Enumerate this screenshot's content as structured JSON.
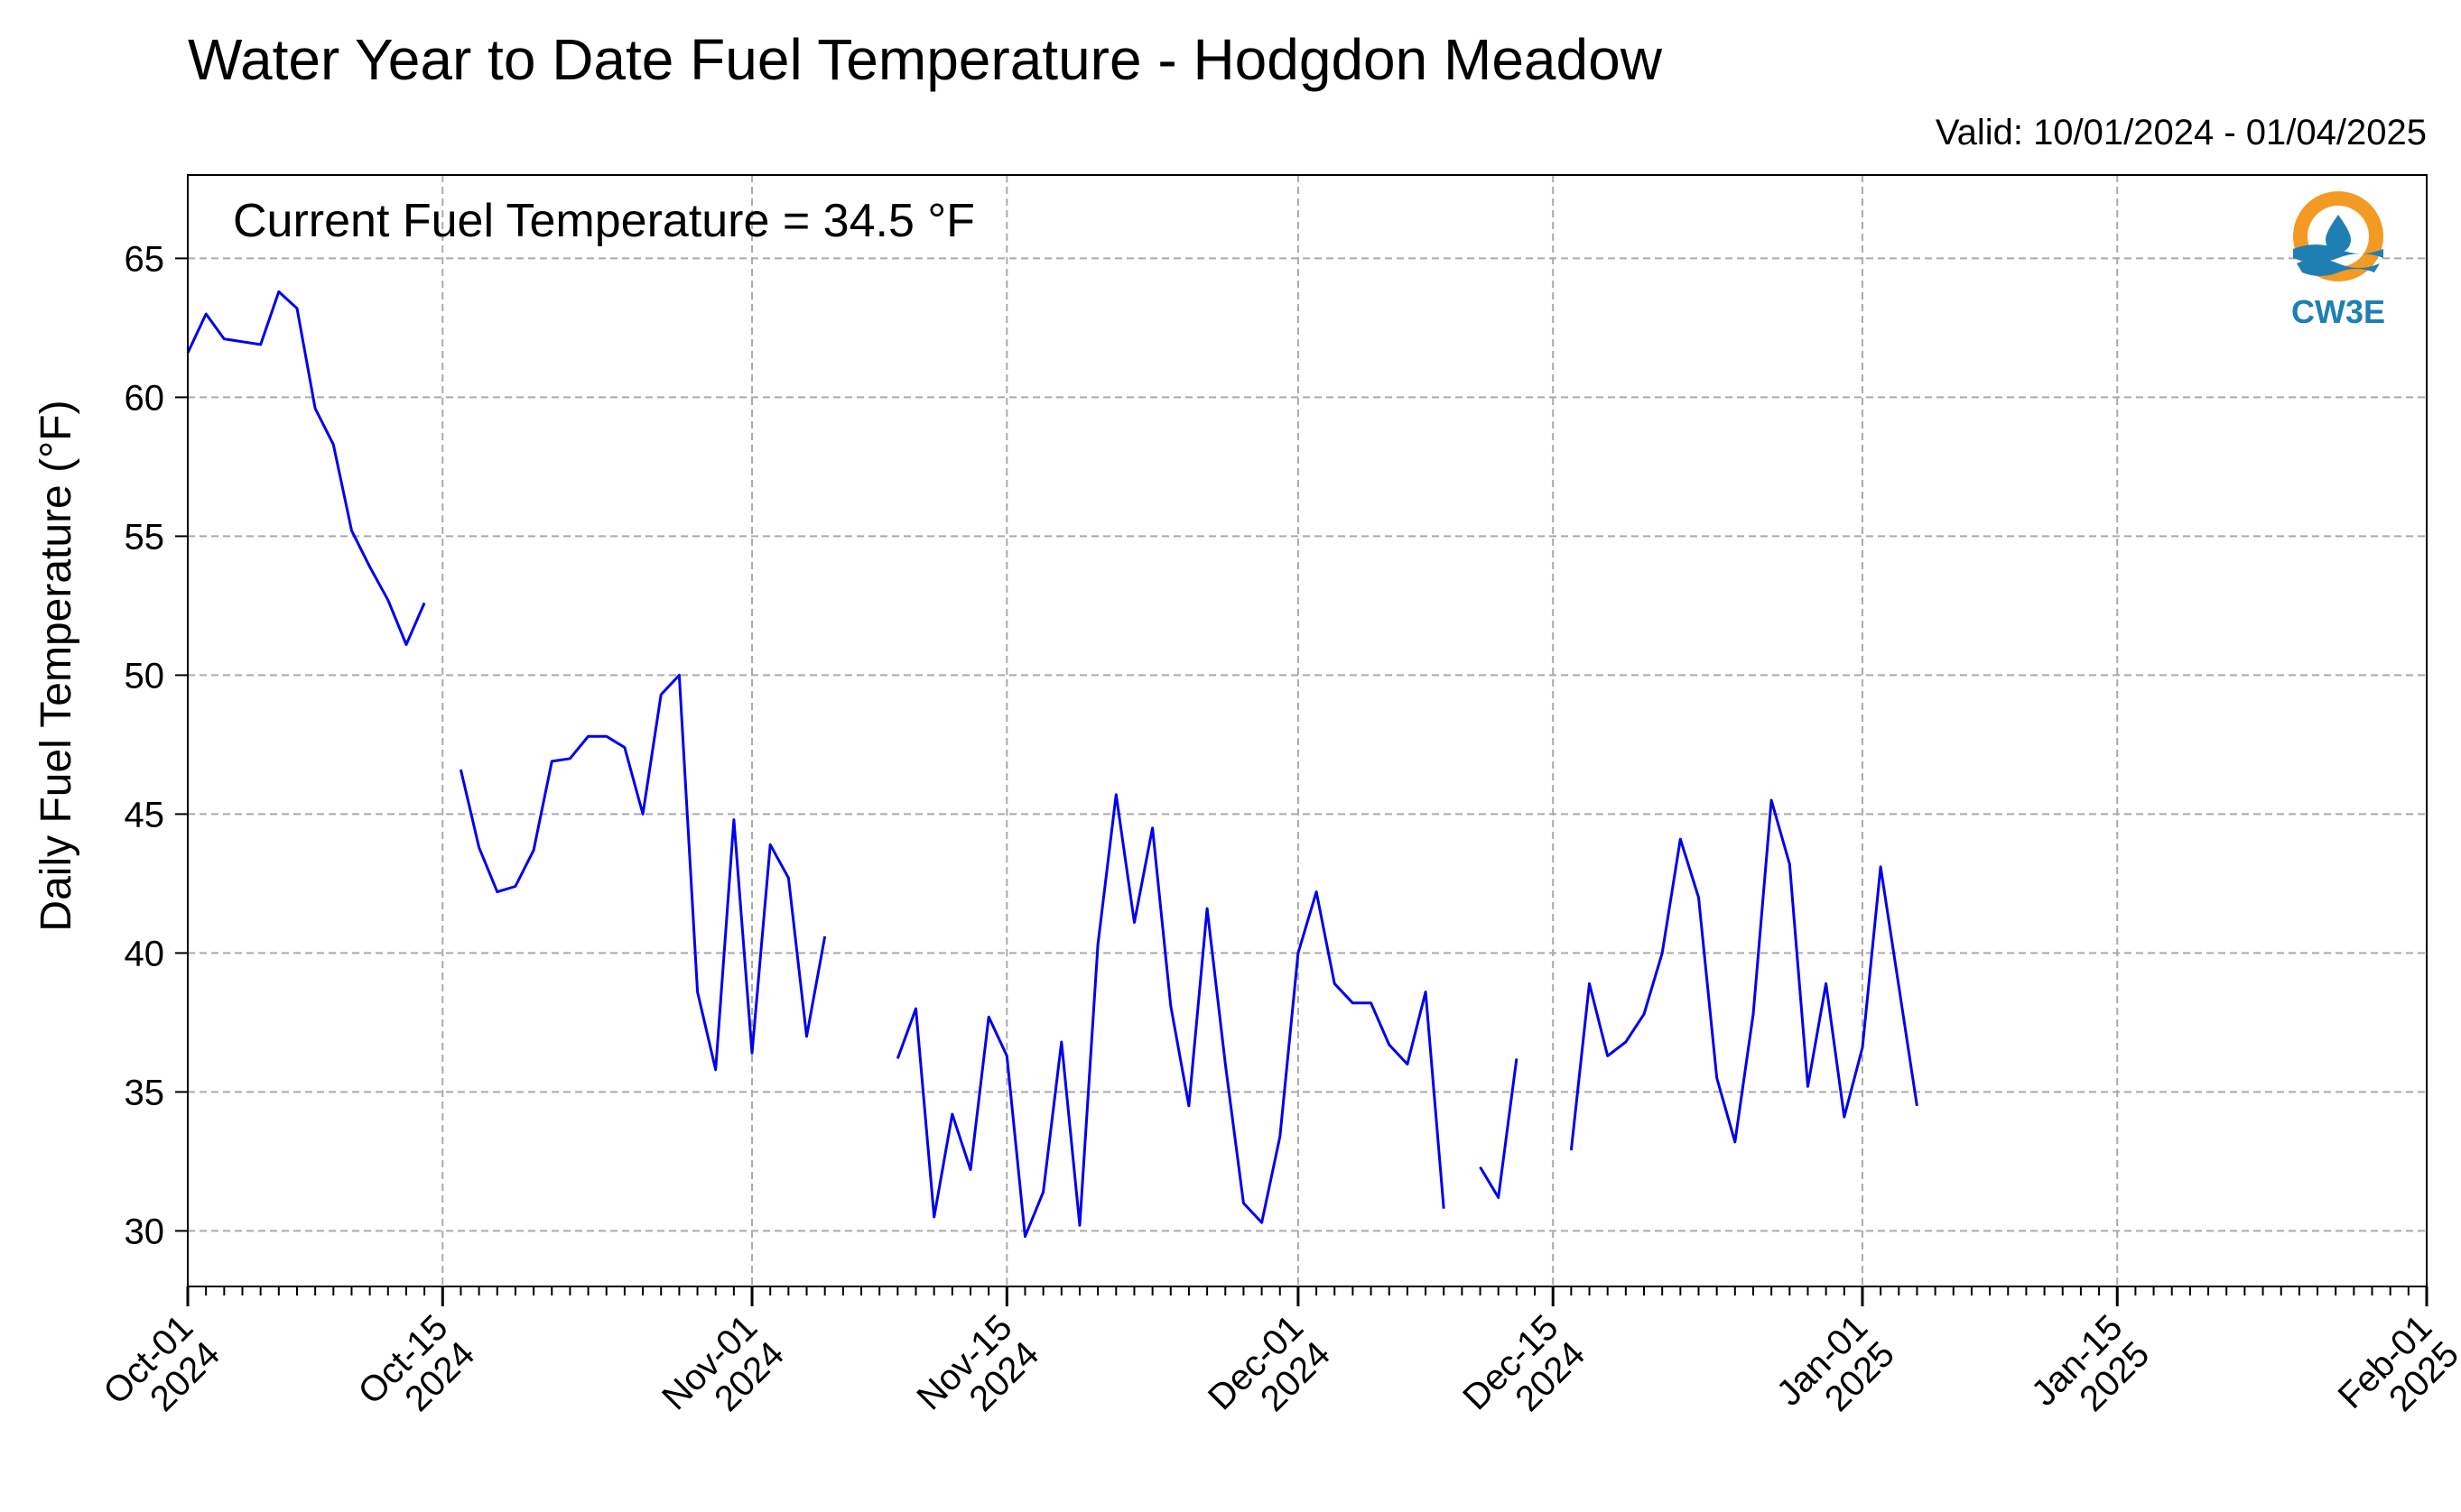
{
  "chart_data": {
    "type": "line",
    "title": "Water Year to Date Fuel Temperature - Hodgdon Meadow",
    "subtitle": "Valid: 10/01/2024 - 01/04/2025",
    "annotation": "Current Fuel Temperature = 34.5  °F",
    "ylabel": "Daily Fuel Temperature (°F)",
    "xlabel": "",
    "ylim": [
      28,
      68
    ],
    "xlim": [
      "2024-10-01",
      "2025-02-01"
    ],
    "grid": true,
    "yticks": [
      30,
      35,
      40,
      45,
      50,
      55,
      60,
      65
    ],
    "xticks": [
      {
        "date": "2024-10-01",
        "line1": "Oct-01",
        "line2": "2024"
      },
      {
        "date": "2024-10-15",
        "line1": "Oct-15",
        "line2": "2024"
      },
      {
        "date": "2024-11-01",
        "line1": "Nov-01",
        "line2": "2024"
      },
      {
        "date": "2024-11-15",
        "line1": "Nov-15",
        "line2": "2024"
      },
      {
        "date": "2024-12-01",
        "line1": "Dec-01",
        "line2": "2024"
      },
      {
        "date": "2024-12-15",
        "line1": "Dec-15",
        "line2": "2024"
      },
      {
        "date": "2025-01-01",
        "line1": "Jan-01",
        "line2": "2025"
      },
      {
        "date": "2025-01-15",
        "line1": "Jan-15",
        "line2": "2025"
      },
      {
        "date": "2025-02-01",
        "line1": "Feb-01",
        "line2": "2025"
      }
    ],
    "series": [
      {
        "color": "#0000ee",
        "x": [
          "2024-10-01",
          "2024-10-02",
          "2024-10-03",
          "2024-10-04",
          "2024-10-05",
          "2024-10-06",
          "2024-10-07",
          "2024-10-08",
          "2024-10-09",
          "2024-10-10",
          "2024-10-11",
          "2024-10-12",
          "2024-10-13",
          "2024-10-14",
          "2024-10-16",
          "2024-10-17",
          "2024-10-18",
          "2024-10-19",
          "2024-10-20",
          "2024-10-21",
          "2024-10-22",
          "2024-10-23",
          "2024-10-24",
          "2024-10-25",
          "2024-10-26",
          "2024-10-27",
          "2024-10-28",
          "2024-10-29",
          "2024-10-30",
          "2024-10-31",
          "2024-11-01",
          "2024-11-02",
          "2024-11-03",
          "2024-11-04",
          "2024-11-05",
          "2024-11-09",
          "2024-11-10",
          "2024-11-11",
          "2024-11-12",
          "2024-11-13",
          "2024-11-14",
          "2024-11-15",
          "2024-11-16",
          "2024-11-17",
          "2024-11-18",
          "2024-11-19",
          "2024-11-20",
          "2024-11-21",
          "2024-11-22",
          "2024-11-23",
          "2024-11-24",
          "2024-11-25",
          "2024-11-26",
          "2024-11-27",
          "2024-11-28",
          "2024-11-29",
          "2024-11-30",
          "2024-12-01",
          "2024-12-02",
          "2024-12-03",
          "2024-12-04",
          "2024-12-05",
          "2024-12-06",
          "2024-12-07",
          "2024-12-08",
          "2024-12-09",
          "2024-12-11",
          "2024-12-12",
          "2024-12-13",
          "2024-12-16",
          "2024-12-17",
          "2024-12-18",
          "2024-12-19",
          "2024-12-20",
          "2024-12-21",
          "2024-12-22",
          "2024-12-23",
          "2024-12-24",
          "2024-12-25",
          "2024-12-26",
          "2024-12-27",
          "2024-12-28",
          "2024-12-29",
          "2024-12-30",
          "2024-12-31",
          "2025-01-01",
          "2025-01-02",
          "2025-01-03",
          "2025-01-04"
        ],
        "y": [
          61.6,
          63.0,
          62.1,
          62.0,
          61.9,
          63.8,
          63.2,
          59.6,
          58.3,
          55.2,
          53.9,
          52.7,
          51.1,
          52.6,
          46.6,
          43.8,
          42.2,
          42.4,
          43.7,
          46.9,
          47.0,
          47.8,
          47.8,
          47.4,
          45.0,
          49.3,
          50.0,
          38.6,
          35.8,
          44.8,
          36.4,
          43.9,
          42.7,
          37.0,
          40.6,
          36.2,
          38.0,
          30.5,
          34.2,
          32.2,
          37.7,
          36.3,
          29.8,
          31.4,
          36.8,
          30.2,
          40.3,
          45.7,
          41.1,
          44.5,
          38.1,
          34.5,
          41.6,
          36.0,
          31.0,
          30.3,
          33.4,
          40.0,
          42.2,
          38.9,
          38.2,
          38.2,
          36.7,
          36.0,
          38.6,
          30.8,
          32.3,
          31.2,
          36.2,
          32.9,
          38.9,
          36.3,
          36.8,
          37.8,
          40.0,
          44.1,
          42.0,
          35.5,
          33.2,
          37.8,
          45.5,
          43.2,
          35.2,
          38.9,
          34.1,
          36.6,
          43.1,
          38.8,
          34.5
        ],
        "segments": [
          [
            0,
            13
          ],
          [
            14,
            34
          ],
          [
            35,
            65
          ],
          [
            66,
            68
          ],
          [
            69,
            88
          ]
        ]
      }
    ]
  },
  "logo": {
    "text": "CW3E",
    "ring_color": "#f39a24",
    "wave_color": "#1f7fb3",
    "icon": "water-drop-icon"
  }
}
